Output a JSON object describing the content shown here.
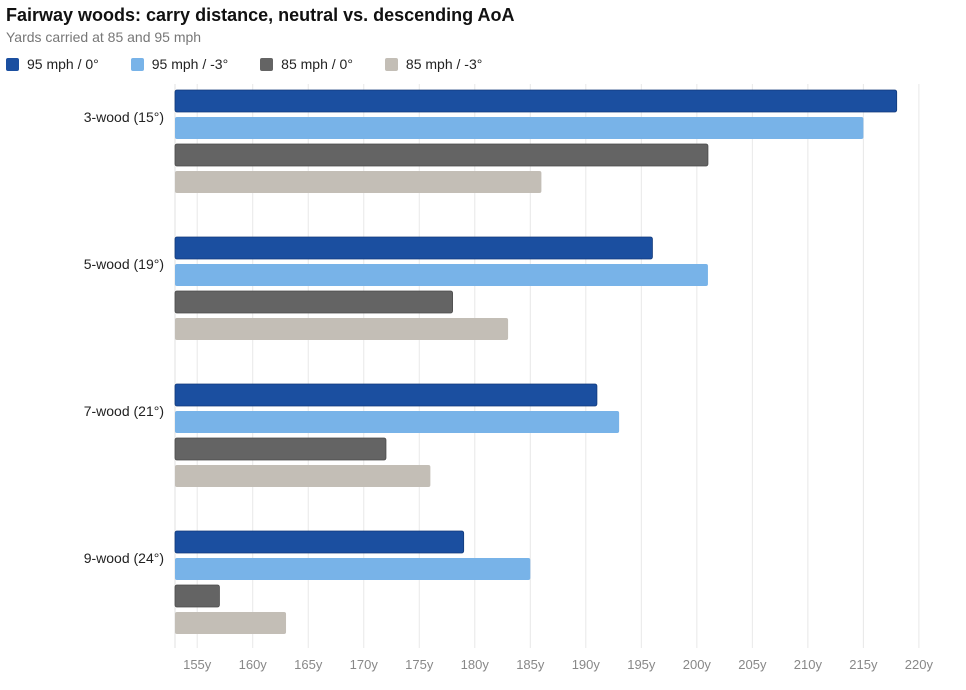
{
  "chart_data": {
    "type": "bar",
    "orientation": "horizontal",
    "title": "Fairway woods: carry distance, neutral vs. descending AoA",
    "subtitle": "Yards carried at 85 and 95 mph",
    "categories": [
      "3-wood (15°)",
      "5-wood (19°)",
      "7-wood (21°)",
      "9-wood (24°)"
    ],
    "series": [
      {
        "name": "95 mph / 0°",
        "color": "#1b4fa0",
        "values": [
          218,
          196,
          191,
          179
        ]
      },
      {
        "name": "95 mph / -3°",
        "color": "#78b3e8",
        "values": [
          215,
          201,
          193,
          185
        ]
      },
      {
        "name": "85 mph / 0°",
        "color": "#646464",
        "values": [
          201,
          178,
          172,
          157
        ]
      },
      {
        "name": "85 mph / -3°",
        "color": "#c3beb6",
        "values": [
          186,
          183,
          176,
          163
        ]
      }
    ],
    "xticks": [
      "155y",
      "160y",
      "165y",
      "170y",
      "175y",
      "180y",
      "185y",
      "190y",
      "195y",
      "200y",
      "205y",
      "210y",
      "215y",
      "220y"
    ],
    "tick_values": [
      155,
      160,
      165,
      170,
      175,
      180,
      185,
      190,
      195,
      200,
      205,
      210,
      215,
      220
    ],
    "xlim": [
      153,
      221
    ],
    "grid": true,
    "legend": "top-left"
  }
}
